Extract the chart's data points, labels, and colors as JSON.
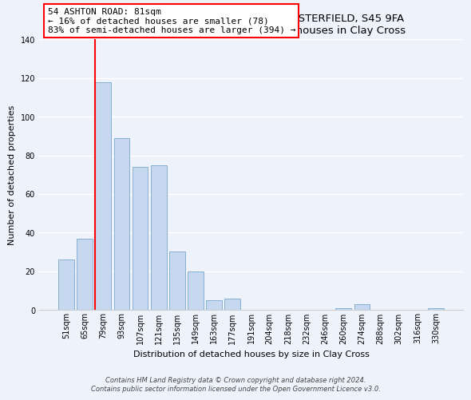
{
  "title": "54, ASHTON ROAD, CLAY CROSS, CHESTERFIELD, S45 9FA",
  "subtitle": "Size of property relative to detached houses in Clay Cross",
  "xlabel": "Distribution of detached houses by size in Clay Cross",
  "ylabel": "Number of detached properties",
  "bar_labels": [
    "51sqm",
    "65sqm",
    "79sqm",
    "93sqm",
    "107sqm",
    "121sqm",
    "135sqm",
    "149sqm",
    "163sqm",
    "177sqm",
    "191sqm",
    "204sqm",
    "218sqm",
    "232sqm",
    "246sqm",
    "260sqm",
    "274sqm",
    "288sqm",
    "302sqm",
    "316sqm",
    "330sqm"
  ],
  "bar_values": [
    26,
    37,
    118,
    89,
    74,
    75,
    30,
    20,
    5,
    6,
    0,
    0,
    0,
    0,
    0,
    1,
    3,
    0,
    0,
    0,
    1
  ],
  "bar_color": "#c5d8f0",
  "bar_edge_color": "#7aA8cc",
  "highlight_color": "red",
  "property_label": "54 ASHTON ROAD: 81sqm",
  "annotation_line1": "← 16% of detached houses are smaller (78)",
  "annotation_line2": "83% of semi-detached houses are larger (394) →",
  "annotation_box_color": "white",
  "annotation_box_edge_color": "red",
  "ylim": [
    0,
    140
  ],
  "yticks": [
    0,
    20,
    40,
    60,
    80,
    100,
    120,
    140
  ],
  "footer_line1": "Contains HM Land Registry data © Crown copyright and database right 2024.",
  "footer_line2": "Contains public sector information licensed under the Open Government Licence v3.0.",
  "bg_color": "#eef3fb",
  "grid_color": "#ffffff",
  "title_fontsize": 9.5,
  "subtitle_fontsize": 8.5,
  "axis_label_fontsize": 8,
  "tick_fontsize": 7,
  "annotation_fontsize": 8,
  "footer_fontsize": 6
}
